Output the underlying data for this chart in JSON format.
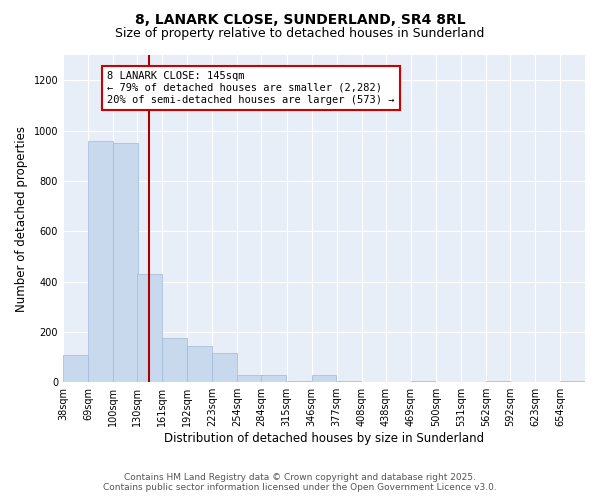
{
  "title_line1": "8, LANARK CLOSE, SUNDERLAND, SR4 8RL",
  "title_line2": "Size of property relative to detached houses in Sunderland",
  "xlabel": "Distribution of detached houses by size in Sunderland",
  "ylabel": "Number of detached properties",
  "property_label": "8 LANARK CLOSE: 145sqm",
  "pct_smaller": "79% of detached houses are smaller (2,282)",
  "pct_larger": "20% of semi-detached houses are larger (573)",
  "bar_color": "#c9d9ed",
  "bar_edge_color": "#a0b8d8",
  "vline_color": "#aa0000",
  "vline_x": 145,
  "categories": [
    "38sqm",
    "69sqm",
    "100sqm",
    "130sqm",
    "161sqm",
    "192sqm",
    "223sqm",
    "254sqm",
    "284sqm",
    "315sqm",
    "346sqm",
    "377sqm",
    "408sqm",
    "438sqm",
    "469sqm",
    "500sqm",
    "531sqm",
    "562sqm",
    "592sqm",
    "623sqm",
    "654sqm"
  ],
  "bin_edges": [
    38,
    69,
    100,
    130,
    161,
    192,
    223,
    254,
    284,
    315,
    346,
    377,
    408,
    438,
    469,
    500,
    531,
    562,
    592,
    623,
    654
  ],
  "bin_width": 31,
  "values": [
    110,
    960,
    950,
    430,
    175,
    145,
    115,
    30,
    30,
    5,
    30,
    5,
    0,
    0,
    5,
    0,
    0,
    5,
    0,
    0,
    5
  ],
  "ylim": [
    0,
    1300
  ],
  "yticks": [
    0,
    200,
    400,
    600,
    800,
    1000,
    1200
  ],
  "plot_bg_color": "#e8eef7",
  "fig_bg_color": "#ffffff",
  "footer_line1": "Contains HM Land Registry data © Crown copyright and database right 2025.",
  "footer_line2": "Contains public sector information licensed under the Open Government Licence v3.0.",
  "annotation_box_color": "#cc0000",
  "title_fontsize": 10,
  "subtitle_fontsize": 9,
  "tick_fontsize": 7,
  "xlabel_fontsize": 8.5,
  "ylabel_fontsize": 8.5,
  "footer_fontsize": 6.5,
  "annot_fontsize": 7.5
}
